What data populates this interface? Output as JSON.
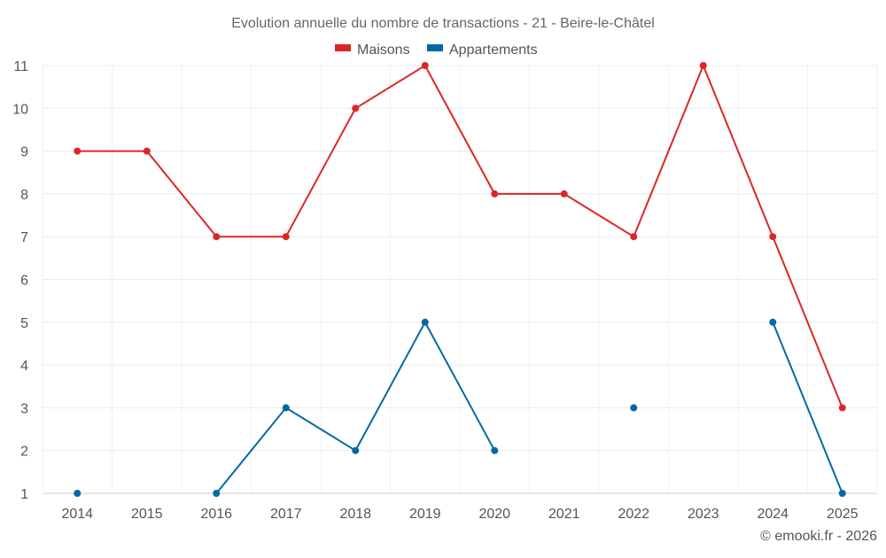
{
  "chart_data": {
    "type": "line",
    "title": "Evolution annuelle du nombre de transactions - 21 - Beire-le-Châtel",
    "categories": [
      "2014",
      "2015",
      "2016",
      "2017",
      "2018",
      "2019",
      "2020",
      "2021",
      "2022",
      "2023",
      "2024",
      "2025"
    ],
    "series": [
      {
        "name": "Maisons",
        "color": "#dc2626",
        "values": [
          9,
          9,
          7,
          7,
          10,
          11,
          8,
          8,
          7,
          11,
          7,
          3
        ]
      },
      {
        "name": "Appartements",
        "color": "#0369a1",
        "values": [
          1,
          null,
          1,
          3,
          2,
          5,
          2,
          null,
          3,
          null,
          5,
          1
        ]
      }
    ],
    "ylim": [
      1,
      11
    ],
    "yticks": [
      "1",
      "2",
      "3",
      "4",
      "5",
      "6",
      "7",
      "8",
      "9",
      "10",
      "11"
    ],
    "xlabel": "",
    "ylabel": "",
    "grid": true,
    "legend_position": "top-center",
    "credit": "© emooki.fr - 2026"
  }
}
